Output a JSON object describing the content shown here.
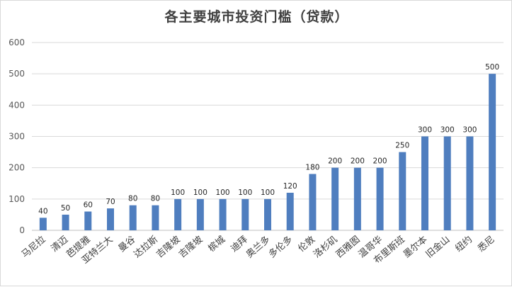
{
  "chart_data": {
    "type": "bar",
    "title": "各主要城市投资门槛（贷款）",
    "xlabel": "",
    "ylabel": "",
    "ylim": [
      0,
      600
    ],
    "yticks": [
      0,
      100,
      200,
      300,
      400,
      500,
      600
    ],
    "grid": true,
    "bar_color": "#4f7ebf",
    "categories": [
      "马尼拉",
      "清迈",
      "芭提雅",
      "亚特兰大",
      "曼谷",
      "达拉斯",
      "吉隆坡",
      "吉隆坡",
      "槟城",
      "迪拜",
      "奥兰多",
      "多伦多",
      "伦敦",
      "洛杉矶",
      "西雅图",
      "温哥华",
      "布里斯班",
      "墨尔本",
      "旧金山",
      "纽约",
      "悉尼"
    ],
    "values": [
      40,
      50,
      60,
      70,
      80,
      80,
      100,
      100,
      100,
      100,
      100,
      120,
      180,
      200,
      200,
      200,
      250,
      300,
      300,
      300,
      500
    ]
  }
}
